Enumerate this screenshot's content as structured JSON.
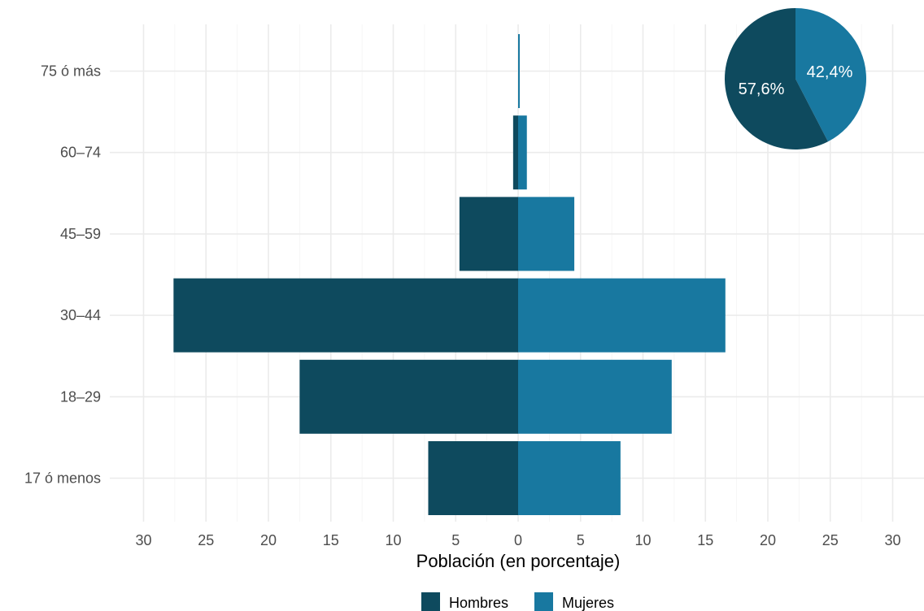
{
  "chart_data": {
    "type": "bar",
    "orientation": "horizontal-pyramid",
    "categories": [
      "17 ó menos",
      "18–29",
      "30–44",
      "45–59",
      "60–74",
      "75 ó más"
    ],
    "series": [
      {
        "name": "Hombres",
        "color": "#0e4a5e",
        "values": [
          7.2,
          17.5,
          27.6,
          4.7,
          0.4,
          0.0
        ]
      },
      {
        "name": "Mujeres",
        "color": "#1878a0",
        "values": [
          8.2,
          12.3,
          16.6,
          4.5,
          0.7,
          0.1
        ]
      }
    ],
    "xlabel": "Población (en porcentaje)",
    "xticks": [
      30,
      25,
      20,
      15,
      10,
      5,
      0,
      5,
      10,
      15,
      20,
      25,
      30
    ],
    "xlim": [
      -30,
      30
    ],
    "grid": true,
    "legend": {
      "placement": "bottom",
      "entries": [
        "Hombres",
        "Mujeres"
      ]
    },
    "inset_pie": {
      "placement": "top-right",
      "slices": [
        {
          "name": "Hombres",
          "value": 57.6,
          "label": "57,6%",
          "color": "#0e4a5e"
        },
        {
          "name": "Mujeres",
          "value": 42.4,
          "label": "42,4%",
          "color": "#1878a0"
        }
      ]
    }
  }
}
